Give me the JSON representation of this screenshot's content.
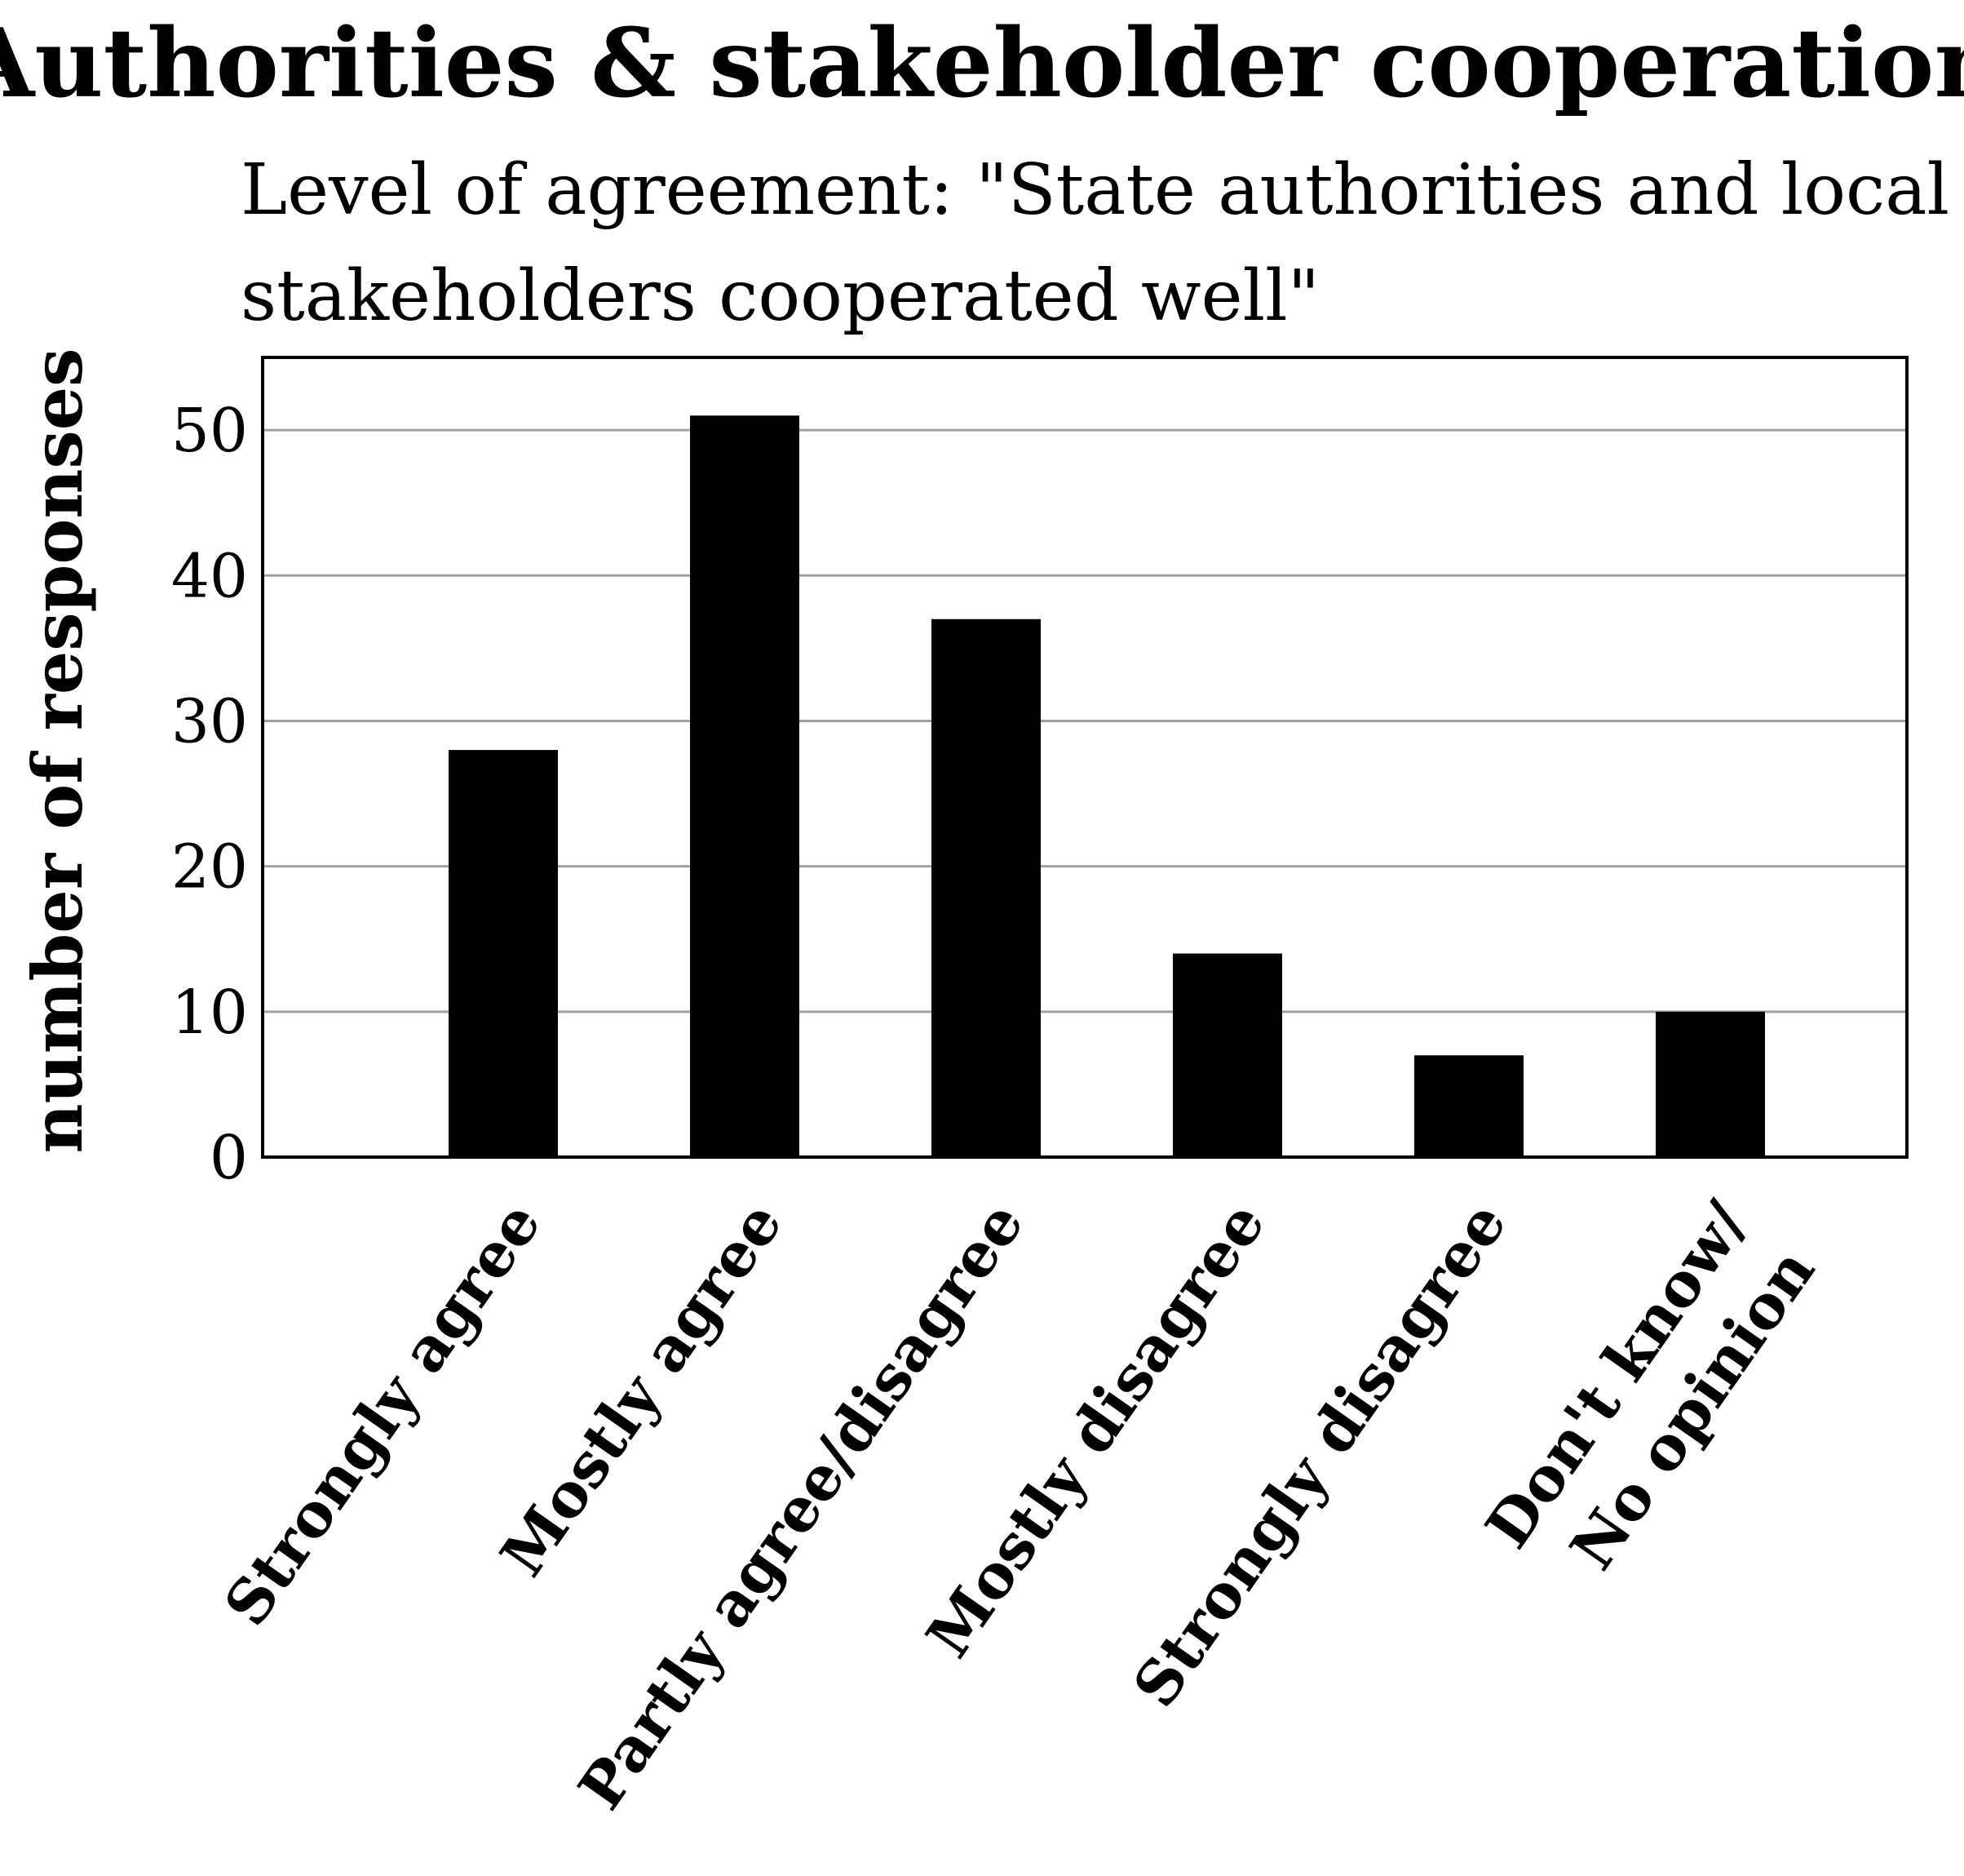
{
  "chart_data": {
    "type": "bar",
    "title": "Authorities & stakeholder cooperation",
    "subtitle_lines": [
      "Level of agreement: \"State authorities and local",
      "stakeholders cooperated well\""
    ],
    "ylabel": "number of responses",
    "xlabel": "",
    "categories": [
      "Strongly agree",
      "Mostly agree",
      "Partly agree/disagree",
      "Mostly disagree",
      "Strongly disagree",
      "Don't know/ No opinion"
    ],
    "category_label_lines": [
      [
        "Strongly agree"
      ],
      [
        "Mostly agree"
      ],
      [
        "Partly agree/disagree"
      ],
      [
        "Mostly disagree"
      ],
      [
        "Strongly disagree"
      ],
      [
        "Don't know/",
        "No opinion"
      ]
    ],
    "values": [
      28,
      51,
      37,
      14,
      7,
      10
    ],
    "ylim": [
      0,
      55
    ],
    "yticks": [
      0,
      10,
      20,
      30,
      40,
      50
    ],
    "grid": true,
    "bar_color": "#000000",
    "grid_color": "#a0a0a0"
  }
}
